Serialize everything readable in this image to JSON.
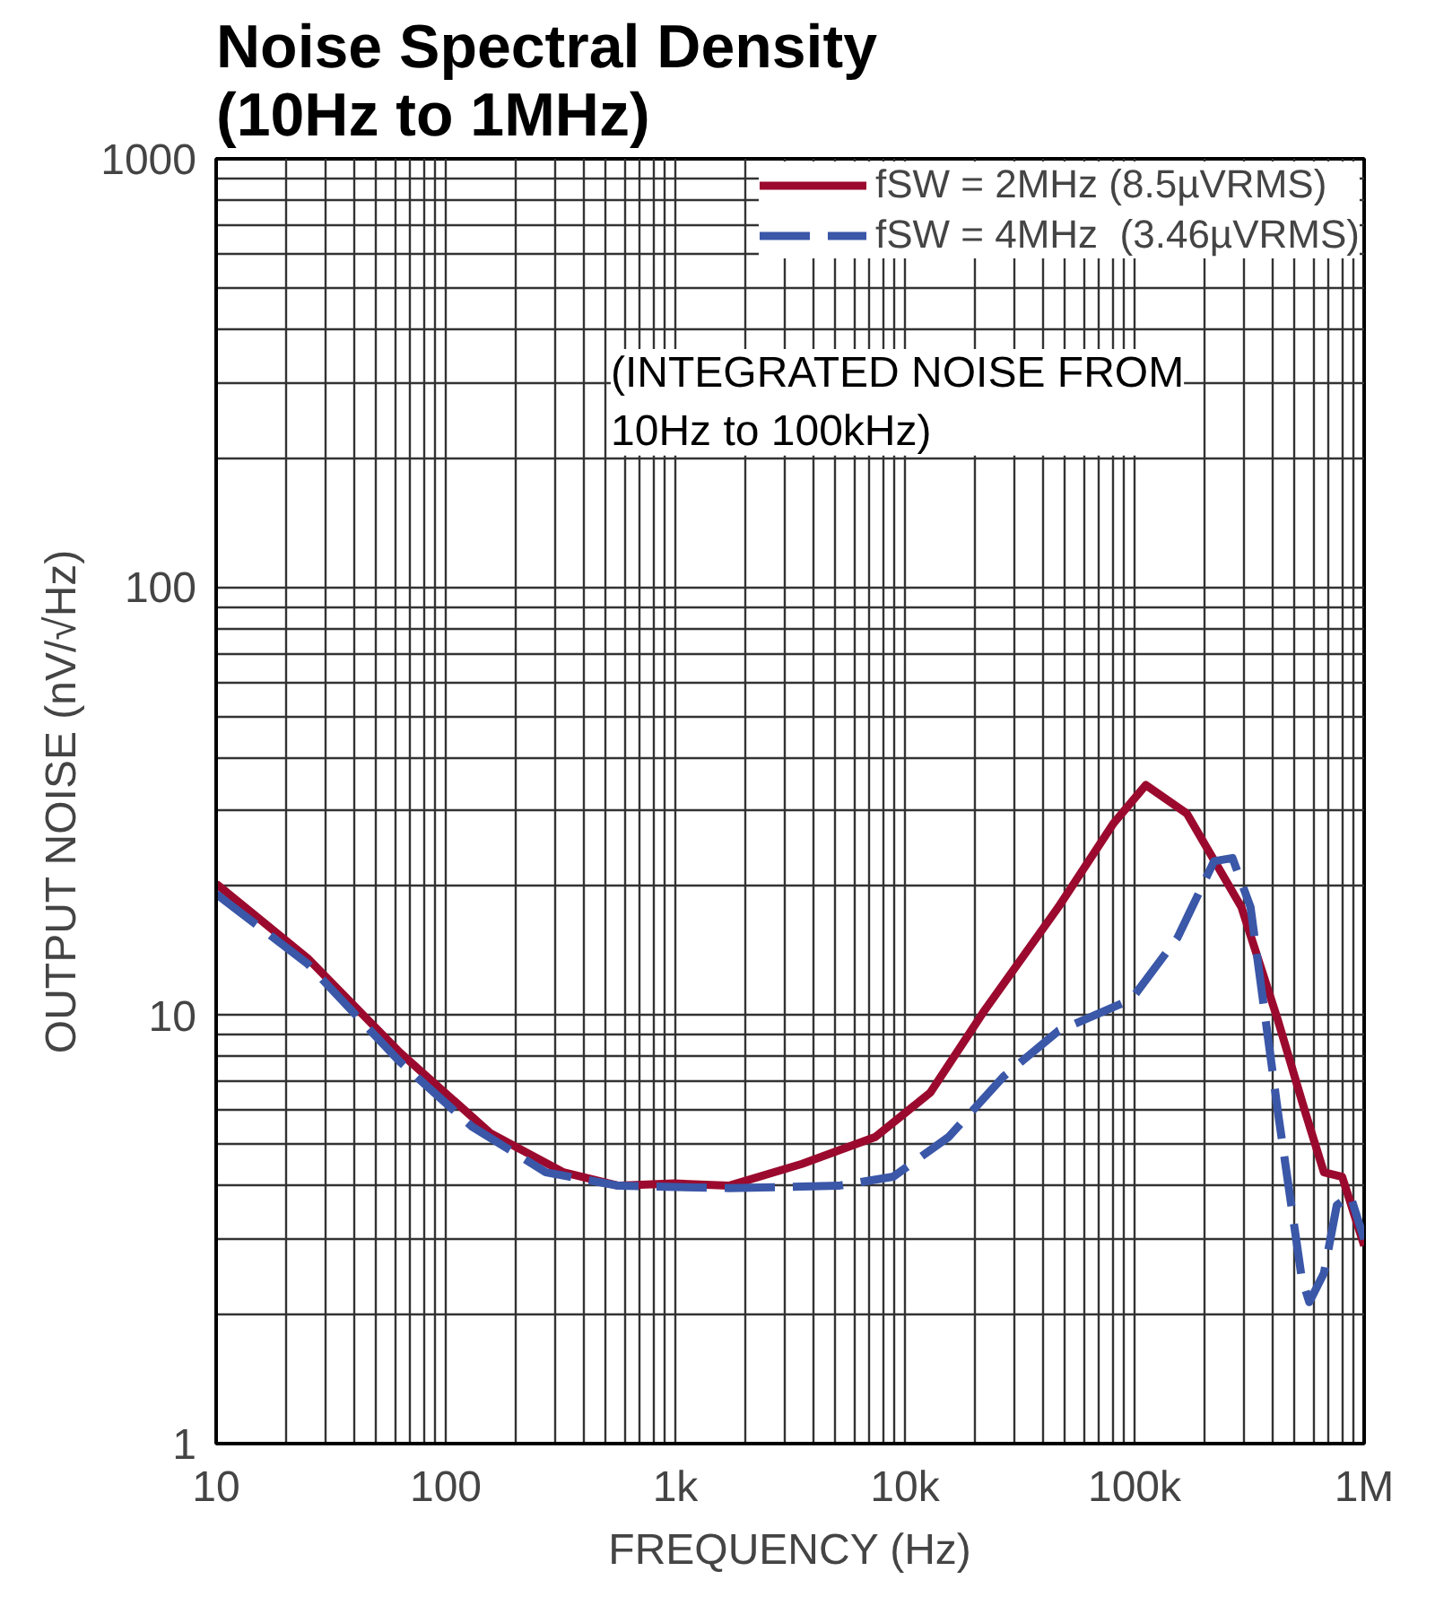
{
  "chart_data": {
    "type": "line",
    "title": "Noise Spectral Density\n(10Hz to 1MHz)",
    "xlabel": "FREQUENCY (Hz)",
    "ylabel": "OUTPUT NOISE (nV/√Hz)",
    "log": "xy",
    "grid": true,
    "legend": "top right",
    "annotations": [
      "(INTEGRATED NOISE FROM\n10Hz to 100kHz)"
    ],
    "xlim": [
      10,
      1000000
    ],
    "ylim": [
      1,
      1000
    ],
    "xticks": [
      10,
      100,
      {
        "value": 1000,
        "label": "1k"
      },
      {
        "value": 10000,
        "label": "10k"
      },
      {
        "value": 100000,
        "label": "100k"
      },
      {
        "value": 1000000,
        "label": "1M"
      }
    ],
    "yticks": [
      1,
      10,
      100,
      1000
    ],
    "series": [
      {
        "name": "fSW = 2MHz (8.5µVRMS)",
        "color": "#9b0a2e",
        "line_style": "solid",
        "x": [
          10,
          25,
          63,
          157,
          326,
          566,
          986,
          1710,
          3560,
          7430,
          12900,
          22300,
          46600,
          80700,
          112000,
          169000,
          292000,
          422000,
          556000,
          668000,
          802000,
          1000000
        ],
        "values": [
          20.3,
          13.6,
          8.2,
          5.3,
          4.3,
          4.0,
          4.05,
          4.0,
          4.5,
          5.2,
          6.6,
          10.3,
          17.9,
          28,
          34.5,
          29.6,
          17.9,
          9.7,
          5.9,
          4.3,
          4.2,
          2.9
        ]
      },
      {
        "name": "fSW = 4MHz  (3.46µVRMS)",
        "color": "#3a57a8",
        "line_style": "dashed",
        "x": [
          10,
          25,
          63,
          130,
          273,
          566,
          1710,
          5140,
          8900,
          15500,
          26900,
          46600,
          97000,
          154000,
          222000,
          267000,
          320000,
          422000,
          535000,
          577000,
          668000,
          760000,
          870000,
          1000000
        ],
        "values": [
          19.2,
          13.2,
          7.8,
          5.5,
          4.3,
          4.0,
          3.95,
          4.0,
          4.2,
          5.2,
          7.2,
          9.2,
          10.9,
          15.2,
          22.9,
          23.3,
          17.9,
          5.9,
          2.43,
          2.14,
          2.5,
          3.6,
          3.8,
          3.0
        ]
      }
    ]
  }
}
